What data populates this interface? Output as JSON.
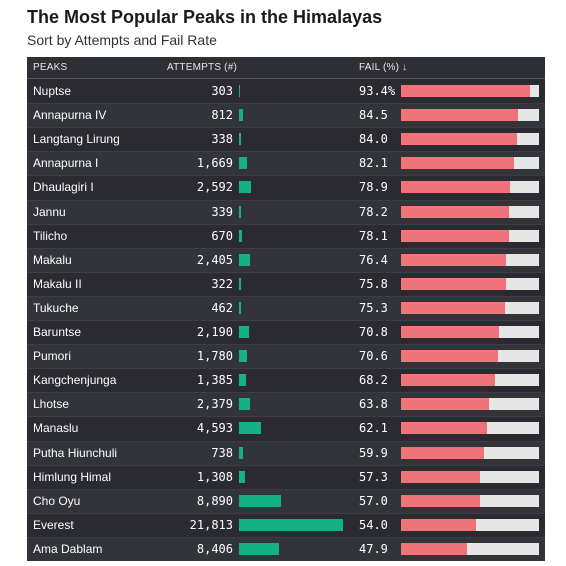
{
  "title": "The Most Popular Peaks in the Himalayas",
  "subtitle": "Sort by Attempts and Fail Rate",
  "colors": {
    "attempts_bar": "#13b187",
    "fail_bar": "#f0737a",
    "fail_track": "#e6e6e6",
    "table_bg": "#2a2a30"
  },
  "chart_data": {
    "type": "table",
    "columns": [
      "PEAKS",
      "ATTEMPTS (#)",
      "FAIL (%) ↓"
    ],
    "sort_indicator": "↓",
    "attempts_max": 21813,
    "rows": [
      {
        "peak": "Nuptse",
        "attempts": 303,
        "attempts_label": "303",
        "fail": 93.4,
        "fail_label": "93.4%"
      },
      {
        "peak": "Annapurna IV",
        "attempts": 812,
        "attempts_label": "812",
        "fail": 84.5,
        "fail_label": "84.5"
      },
      {
        "peak": "Langtang Lirung",
        "attempts": 338,
        "attempts_label": "338",
        "fail": 84.0,
        "fail_label": "84.0"
      },
      {
        "peak": "Annapurna I",
        "attempts": 1669,
        "attempts_label": "1,669",
        "fail": 82.1,
        "fail_label": "82.1"
      },
      {
        "peak": "Dhaulagiri I",
        "attempts": 2592,
        "attempts_label": "2,592",
        "fail": 78.9,
        "fail_label": "78.9"
      },
      {
        "peak": "Jannu",
        "attempts": 339,
        "attempts_label": "339",
        "fail": 78.2,
        "fail_label": "78.2"
      },
      {
        "peak": "Tilicho",
        "attempts": 670,
        "attempts_label": "670",
        "fail": 78.1,
        "fail_label": "78.1"
      },
      {
        "peak": "Makalu",
        "attempts": 2405,
        "attempts_label": "2,405",
        "fail": 76.4,
        "fail_label": "76.4"
      },
      {
        "peak": "Makalu II",
        "attempts": 322,
        "attempts_label": "322",
        "fail": 75.8,
        "fail_label": "75.8"
      },
      {
        "peak": "Tukuche",
        "attempts": 462,
        "attempts_label": "462",
        "fail": 75.3,
        "fail_label": "75.3"
      },
      {
        "peak": "Baruntse",
        "attempts": 2190,
        "attempts_label": "2,190",
        "fail": 70.8,
        "fail_label": "70.8"
      },
      {
        "peak": "Pumori",
        "attempts": 1780,
        "attempts_label": "1,780",
        "fail": 70.6,
        "fail_label": "70.6"
      },
      {
        "peak": "Kangchenjunga",
        "attempts": 1385,
        "attempts_label": "1,385",
        "fail": 68.2,
        "fail_label": "68.2"
      },
      {
        "peak": "Lhotse",
        "attempts": 2379,
        "attempts_label": "2,379",
        "fail": 63.8,
        "fail_label": "63.8"
      },
      {
        "peak": "Manaslu",
        "attempts": 4593,
        "attempts_label": "4,593",
        "fail": 62.1,
        "fail_label": "62.1"
      },
      {
        "peak": "Putha Hiunchuli",
        "attempts": 738,
        "attempts_label": "738",
        "fail": 59.9,
        "fail_label": "59.9"
      },
      {
        "peak": "Himlung Himal",
        "attempts": 1308,
        "attempts_label": "1,308",
        "fail": 57.3,
        "fail_label": "57.3"
      },
      {
        "peak": "Cho Oyu",
        "attempts": 8890,
        "attempts_label": "8,890",
        "fail": 57.0,
        "fail_label": "57.0"
      },
      {
        "peak": "Everest",
        "attempts": 21813,
        "attempts_label": "21,813",
        "fail": 54.0,
        "fail_label": "54.0"
      },
      {
        "peak": "Ama Dablam",
        "attempts": 8406,
        "attempts_label": "8,406",
        "fail": 47.9,
        "fail_label": "47.9"
      }
    ]
  }
}
